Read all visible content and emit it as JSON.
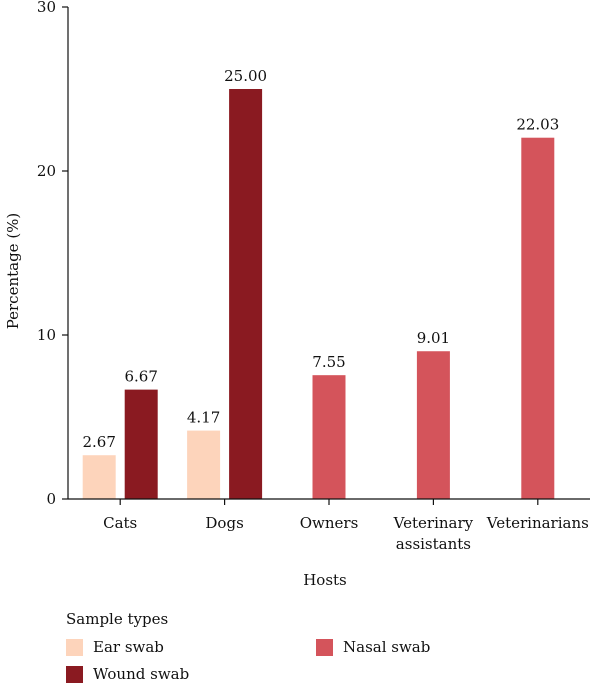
{
  "chart_data": {
    "type": "bar",
    "categories": [
      [
        "Cats"
      ],
      [
        "Dogs"
      ],
      [
        "Owners"
      ],
      [
        "Veterinary",
        "assistants"
      ],
      [
        "Veterinarians"
      ]
    ],
    "series": [
      {
        "name": "Ear swab",
        "color": "#fdd4bb",
        "values": [
          2.67,
          4.17,
          null,
          null,
          null
        ],
        "labels": [
          "2.67",
          "4.17",
          null,
          null,
          null
        ]
      },
      {
        "name": "Wound swab",
        "color": "#8a1a21",
        "values": [
          6.67,
          25.0,
          null,
          null,
          null
        ],
        "labels": [
          "6.67",
          "25.00",
          null,
          null,
          null
        ]
      },
      {
        "name": "Nasal swab",
        "color": "#d4545b",
        "values": [
          null,
          null,
          7.55,
          9.01,
          22.03
        ],
        "labels": [
          null,
          null,
          "7.55",
          "9.01",
          "22.03"
        ]
      }
    ],
    "xlabel": "Hosts",
    "ylabel": "Percentage (%)",
    "ylim": [
      0,
      30
    ],
    "yticks": [
      0,
      10,
      20,
      30
    ],
    "legend_title": "Sample types",
    "legend_placement": "bottom",
    "grid": false
  }
}
